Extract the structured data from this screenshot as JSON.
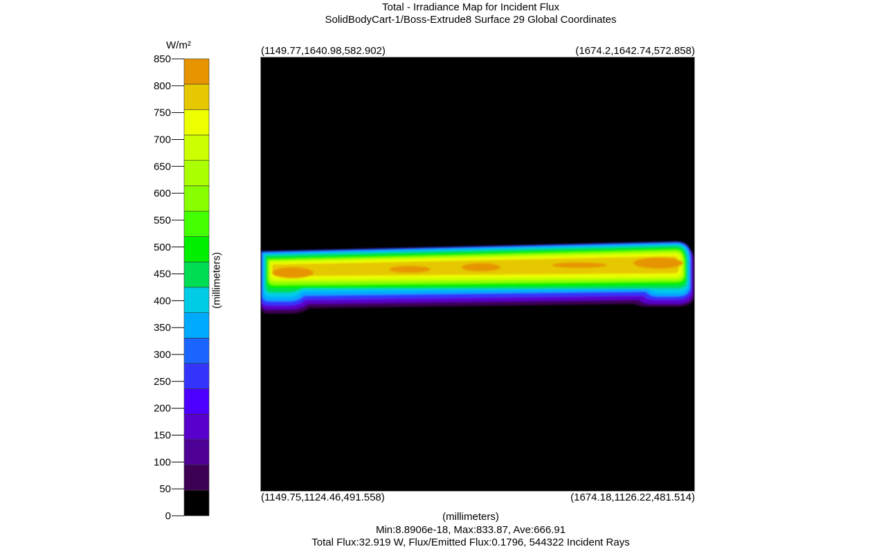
{
  "chart_data": {
    "type": "heatmap",
    "title": "Total - Irradiance Map for Incident Flux",
    "subtitle": "SolidBodyCart-1/Boss-Extrude8 Surface 29    Global Coordinates",
    "xlabel": "(millimeters)",
    "ylabel": "(millimeters)",
    "colorbar": {
      "unit": "W/m²",
      "ticks": [
        0,
        50,
        100,
        150,
        200,
        250,
        300,
        350,
        400,
        450,
        500,
        550,
        600,
        650,
        700,
        750,
        800,
        850
      ],
      "tick_labels": [
        "0",
        "50",
        "100",
        "150",
        "200",
        "250",
        "300",
        "350",
        "400",
        "450",
        "500",
        "550",
        "600",
        "650",
        "700",
        "750",
        "800",
        "850"
      ],
      "range": [
        0,
        850
      ],
      "colors": [
        "#000000",
        "#3d0055",
        "#4f0095",
        "#5a00cc",
        "#4d00ff",
        "#3335ff",
        "#1a66ff",
        "#00aaff",
        "#00cce6",
        "#00dd55",
        "#00f000",
        "#44ff00",
        "#88ff00",
        "#aaff00",
        "#ccff00",
        "#eeff00",
        "#e6c800",
        "#e69500"
      ]
    },
    "corners": {
      "top_left": "(1149.77,1640.98,582.902)",
      "top_right": "(1674.2,1642.74,572.858)",
      "bottom_left": "(1149.75,1124.46,491.558)",
      "bottom_right": "(1674.18,1126.22,481.514)"
    },
    "stats": {
      "min_max_ave": "Min:8.8906e-18, Max:833.87, Ave:666.91",
      "flux": "Total Flux:32.919 W, Flux/Emitted Flux:0.1796, 544322 Incident Rays"
    },
    "min": 8.8906e-18,
    "max": 833.87,
    "ave": 666.91
  }
}
